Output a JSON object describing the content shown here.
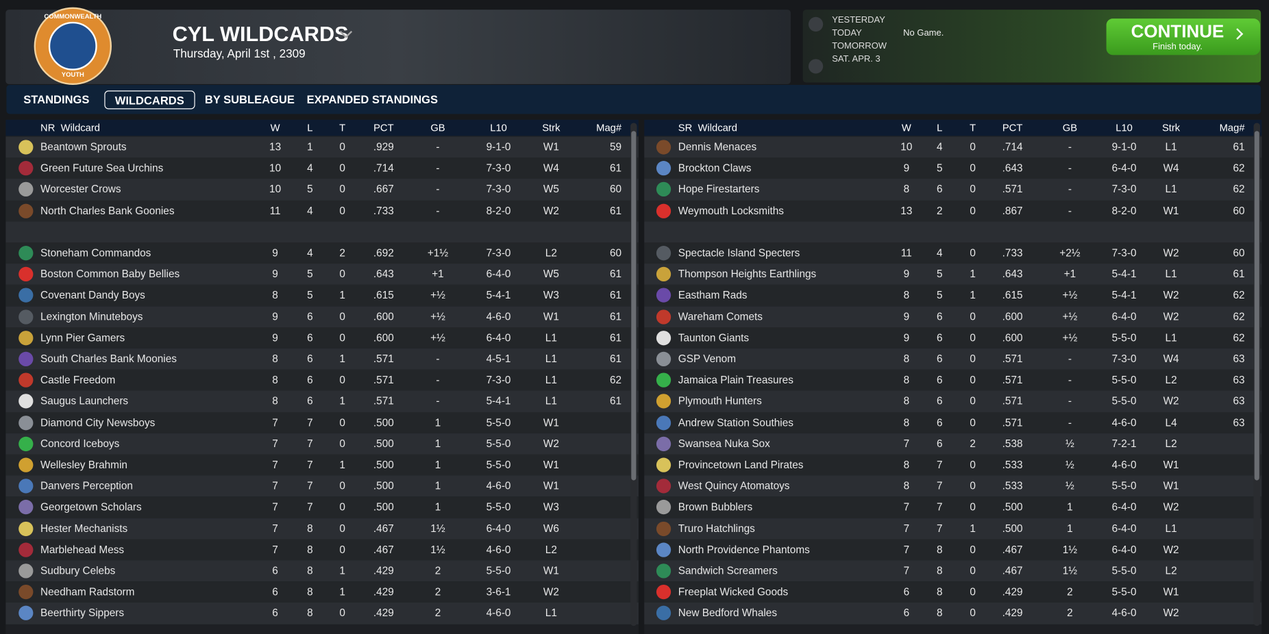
{
  "header": {
    "logo": {
      "top": "COMMONWEALTH",
      "bottom": "YOUTH"
    },
    "title": "CYL WILDCARDS",
    "date": "Thursday, April 1st , 2309"
  },
  "schedule": {
    "days": [
      "YESTERDAY",
      "TODAY",
      "TOMORROW",
      "SAT. APR. 3"
    ],
    "status": "No Game."
  },
  "continue_button": {
    "label": "CONTINUE",
    "sublabel": "Finish today."
  },
  "tabs": [
    "STANDINGS",
    "WILDCARDS",
    "BY SUBLEAGUE",
    "EXPANDED STANDINGS"
  ],
  "tables": [
    {
      "header": [
        "NR  Wildcard",
        "W",
        "L",
        "T",
        "PCT",
        "GB",
        "L10",
        "Strk",
        "Mag#"
      ],
      "groups": [
        {
          "rows": [
            [
              "Beantown Sprouts",
              "13",
              "1",
              "0",
              ".929",
              "-",
              "9-1-0",
              "W1",
              "59"
            ],
            [
              "Green Future Sea Urchins",
              "10",
              "4",
              "0",
              ".714",
              "-",
              "7-3-0",
              "W4",
              "61"
            ],
            [
              "Worcester Crows",
              "10",
              "5",
              "0",
              ".667",
              "-",
              "7-3-0",
              "W5",
              "60"
            ],
            [
              "North Charles Bank Goonies",
              "11",
              "4",
              "0",
              ".733",
              "-",
              "8-2-0",
              "W2",
              "61"
            ]
          ]
        },
        {
          "rows": [
            [
              "Stoneham Commandos",
              "9",
              "4",
              "2",
              ".692",
              "+1½",
              "7-3-0",
              "L2",
              "60"
            ],
            [
              "Boston Common Baby Bellies",
              "9",
              "5",
              "0",
              ".643",
              "+1",
              "6-4-0",
              "W5",
              "61"
            ],
            [
              "Covenant Dandy Boys",
              "8",
              "5",
              "1",
              ".615",
              "+½",
              "5-4-1",
              "W3",
              "61"
            ],
            [
              "Lexington Minuteboys",
              "9",
              "6",
              "0",
              ".600",
              "+½",
              "4-6-0",
              "W1",
              "61"
            ],
            [
              "Lynn Pier Gamers",
              "9",
              "6",
              "0",
              ".600",
              "+½",
              "6-4-0",
              "L1",
              "61"
            ],
            [
              "South Charles Bank Moonies",
              "8",
              "6",
              "1",
              ".571",
              "-",
              "4-5-1",
              "L1",
              "61"
            ],
            [
              "Castle Freedom",
              "8",
              "6",
              "0",
              ".571",
              "-",
              "7-3-0",
              "L1",
              "62"
            ],
            [
              "Saugus Launchers",
              "8",
              "6",
              "1",
              ".571",
              "-",
              "5-4-1",
              "L1",
              "61"
            ],
            [
              "Diamond City Newsboys",
              "7",
              "7",
              "0",
              ".500",
              "1",
              "5-5-0",
              "W1"
            ],
            [
              "Concord Iceboys",
              "7",
              "7",
              "0",
              ".500",
              "1",
              "5-5-0",
              "W2"
            ],
            [
              "Wellesley Brahmin",
              "7",
              "7",
              "1",
              ".500",
              "1",
              "5-5-0",
              "W1"
            ],
            [
              "Danvers Perception",
              "7",
              "7",
              "0",
              ".500",
              "1",
              "4-6-0",
              "W1"
            ],
            [
              "Georgetown Scholars",
              "7",
              "7",
              "0",
              ".500",
              "1",
              "5-5-0",
              "W3"
            ],
            [
              "Hester Mechanists",
              "7",
              "8",
              "0",
              ".467",
              "1½",
              "6-4-0",
              "W6"
            ],
            [
              "Marblehead Mess",
              "7",
              "8",
              "0",
              ".467",
              "1½",
              "4-6-0",
              "L2"
            ],
            [
              "Sudbury Celebs",
              "6",
              "8",
              "1",
              ".429",
              "2",
              "5-5-0",
              "W1"
            ],
            [
              "Needham Radstorm",
              "6",
              "8",
              "1",
              ".429",
              "2",
              "3-6-1",
              "W2"
            ],
            [
              "Beerthirty Sippers",
              "6",
              "8",
              "0",
              ".429",
              "2",
              "4-6-0",
              "L1"
            ]
          ]
        }
      ]
    },
    {
      "header": [
        "SR  Wildcard",
        "W",
        "L",
        "T",
        "PCT",
        "GB",
        "L10",
        "Strk",
        "Mag#"
      ],
      "groups": [
        {
          "rows": [
            [
              "Dennis Menaces",
              "10",
              "4",
              "0",
              ".714",
              "-",
              "9-1-0",
              "L1",
              "61"
            ],
            [
              "Brockton Claws",
              "9",
              "5",
              "0",
              ".643",
              "-",
              "6-4-0",
              "W4",
              "62"
            ],
            [
              "Hope Firestarters",
              "8",
              "6",
              "0",
              ".571",
              "-",
              "7-3-0",
              "L1",
              "62"
            ],
            [
              "Weymouth Locksmiths",
              "13",
              "2",
              "0",
              ".867",
              "-",
              "8-2-0",
              "W1",
              "60"
            ]
          ]
        },
        {
          "rows": [
            [
              "Spectacle Island Specters",
              "11",
              "4",
              "0",
              ".733",
              "+2½",
              "7-3-0",
              "W2",
              "60"
            ],
            [
              "Thompson Heights Earthlings",
              "9",
              "5",
              "1",
              ".643",
              "+1",
              "5-4-1",
              "L1",
              "61"
            ],
            [
              "Eastham Rads",
              "8",
              "5",
              "1",
              ".615",
              "+½",
              "5-4-1",
              "W2",
              "62"
            ],
            [
              "Wareham Comets",
              "9",
              "6",
              "0",
              ".600",
              "+½",
              "6-4-0",
              "W2",
              "62"
            ],
            [
              "Taunton Giants",
              "9",
              "6",
              "0",
              ".600",
              "+½",
              "5-5-0",
              "L1",
              "62"
            ],
            [
              "GSP Venom",
              "8",
              "6",
              "0",
              ".571",
              "-",
              "7-3-0",
              "W4",
              "63"
            ],
            [
              "Jamaica Plain Treasures",
              "8",
              "6",
              "0",
              ".571",
              "-",
              "5-5-0",
              "L2",
              "63"
            ],
            [
              "Plymouth Hunters",
              "8",
              "6",
              "0",
              ".571",
              "-",
              "5-5-0",
              "W2",
              "63"
            ],
            [
              "Andrew Station Southies",
              "8",
              "6",
              "0",
              ".571",
              "-",
              "4-6-0",
              "L4",
              "63"
            ],
            [
              "Swansea Nuka Sox",
              "7",
              "6",
              "2",
              ".538",
              "½",
              "7-2-1",
              "L2"
            ],
            [
              "Provincetown Land Pirates",
              "8",
              "7",
              "0",
              ".533",
              "½",
              "4-6-0",
              "W1"
            ],
            [
              "West Quincy Atomatoys",
              "8",
              "7",
              "0",
              ".533",
              "½",
              "5-5-0",
              "W1"
            ],
            [
              "Brown Bubblers",
              "7",
              "7",
              "0",
              ".500",
              "1",
              "6-4-0",
              "W2"
            ],
            [
              "Truro Hatchlings",
              "7",
              "7",
              "1",
              ".500",
              "1",
              "6-4-0",
              "L1"
            ],
            [
              "North Providence Phantoms",
              "7",
              "8",
              "0",
              ".467",
              "1½",
              "6-4-0",
              "W2"
            ],
            [
              "Sandwich Screamers",
              "7",
              "8",
              "0",
              ".467",
              "1½",
              "5-5-0",
              "L2"
            ],
            [
              "Freeplat Wicked Goods",
              "6",
              "8",
              "0",
              ".429",
              "2",
              "5-5-0",
              "W1"
            ],
            [
              "New Bedford Whales",
              "6",
              "8",
              "0",
              ".429",
              "2",
              "4-6-0",
              "W2"
            ]
          ]
        }
      ]
    }
  ]
}
